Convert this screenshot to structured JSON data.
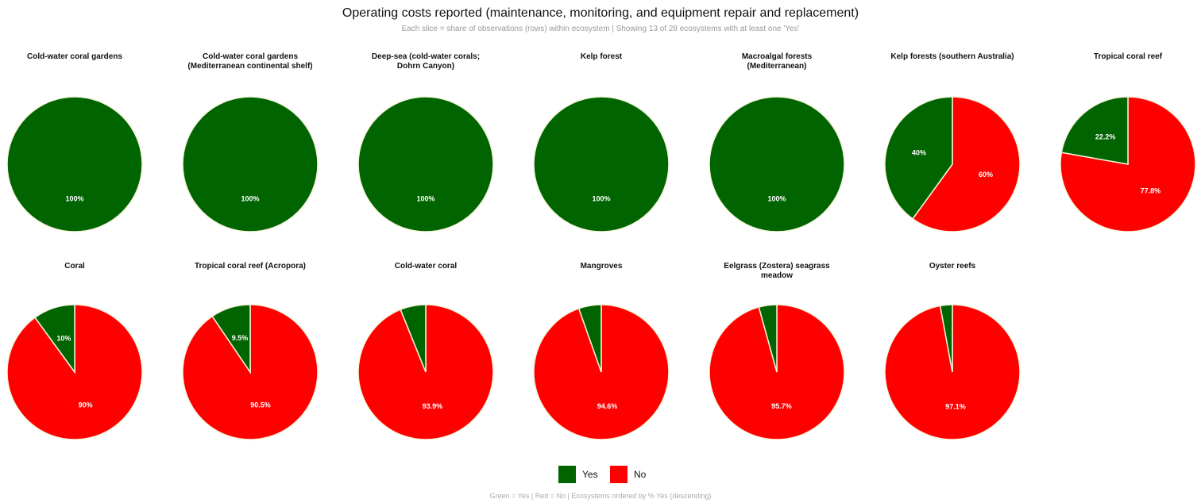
{
  "title": "Operating costs reported (maintenance, monitoring, and equipment repair and replacement)",
  "subtitle": "Each slice = share of observations (rows) within ecosystem | Showing 13 of 28 ecosystems with at least one 'Yes'",
  "footer": "Green = Yes | Red = No | Ecosystems ordered by % Yes (descending)",
  "chart_data": [
    {
      "type": "pie",
      "title": "Cold-water coral gardens",
      "categories": [
        "Yes",
        "No"
      ],
      "colors": [
        "#006400",
        "#ff0000"
      ],
      "values": [
        100,
        0
      ],
      "value_labels": [
        "100%",
        null
      ]
    },
    {
      "type": "pie",
      "title": "Cold-water coral gardens (Mediterranean continental shelf)",
      "categories": [
        "Yes",
        "No"
      ],
      "colors": [
        "#006400",
        "#ff0000"
      ],
      "values": [
        100,
        0
      ],
      "value_labels": [
        "100%",
        null
      ]
    },
    {
      "type": "pie",
      "title": "Deep-sea (cold-water corals; Dohrn Canyon)",
      "categories": [
        "Yes",
        "No"
      ],
      "colors": [
        "#006400",
        "#ff0000"
      ],
      "values": [
        100,
        0
      ],
      "value_labels": [
        "100%",
        null
      ]
    },
    {
      "type": "pie",
      "title": "Kelp forest",
      "categories": [
        "Yes",
        "No"
      ],
      "colors": [
        "#006400",
        "#ff0000"
      ],
      "values": [
        100,
        0
      ],
      "value_labels": [
        "100%",
        null
      ]
    },
    {
      "type": "pie",
      "title": "Macroalgal forests (Mediterranean)",
      "categories": [
        "Yes",
        "No"
      ],
      "colors": [
        "#006400",
        "#ff0000"
      ],
      "values": [
        100,
        0
      ],
      "value_labels": [
        "100%",
        null
      ]
    },
    {
      "type": "pie",
      "title": "Kelp forests (southern Australia)",
      "categories": [
        "Yes",
        "No"
      ],
      "colors": [
        "#006400",
        "#ff0000"
      ],
      "values": [
        40,
        60
      ],
      "value_labels": [
        "40%",
        "60%"
      ]
    },
    {
      "type": "pie",
      "title": "Tropical coral reef",
      "categories": [
        "Yes",
        "No"
      ],
      "colors": [
        "#006400",
        "#ff0000"
      ],
      "values": [
        22.2,
        77.8
      ],
      "value_labels": [
        "22.2%",
        "77.8%"
      ]
    },
    {
      "type": "pie",
      "title": "Coral",
      "categories": [
        "Yes",
        "No"
      ],
      "colors": [
        "#006400",
        "#ff0000"
      ],
      "values": [
        10,
        90
      ],
      "value_labels": [
        "10%",
        "90%"
      ]
    },
    {
      "type": "pie",
      "title": "Tropical coral reef (Acropora)",
      "categories": [
        "Yes",
        "No"
      ],
      "colors": [
        "#006400",
        "#ff0000"
      ],
      "values": [
        9.5,
        90.5
      ],
      "value_labels": [
        "9.5%",
        "90.5%"
      ]
    },
    {
      "type": "pie",
      "title": "Cold-water coral",
      "categories": [
        "Yes",
        "No"
      ],
      "colors": [
        "#006400",
        "#ff0000"
      ],
      "values": [
        6.1,
        93.9
      ],
      "value_labels": [
        null,
        "93.9%"
      ]
    },
    {
      "type": "pie",
      "title": "Mangroves",
      "categories": [
        "Yes",
        "No"
      ],
      "colors": [
        "#006400",
        "#ff0000"
      ],
      "values": [
        5.4,
        94.6
      ],
      "value_labels": [
        null,
        "94.6%"
      ]
    },
    {
      "type": "pie",
      "title": "Eelgrass (Zostera) seagrass meadow",
      "categories": [
        "Yes",
        "No"
      ],
      "colors": [
        "#006400",
        "#ff0000"
      ],
      "values": [
        4.3,
        95.7
      ],
      "value_labels": [
        null,
        "95.7%"
      ]
    },
    {
      "type": "pie",
      "title": "Oyster reefs",
      "categories": [
        "Yes",
        "No"
      ],
      "colors": [
        "#006400",
        "#ff0000"
      ],
      "values": [
        2.9,
        97.1
      ],
      "value_labels": [
        null,
        "97.1%"
      ]
    }
  ]
}
